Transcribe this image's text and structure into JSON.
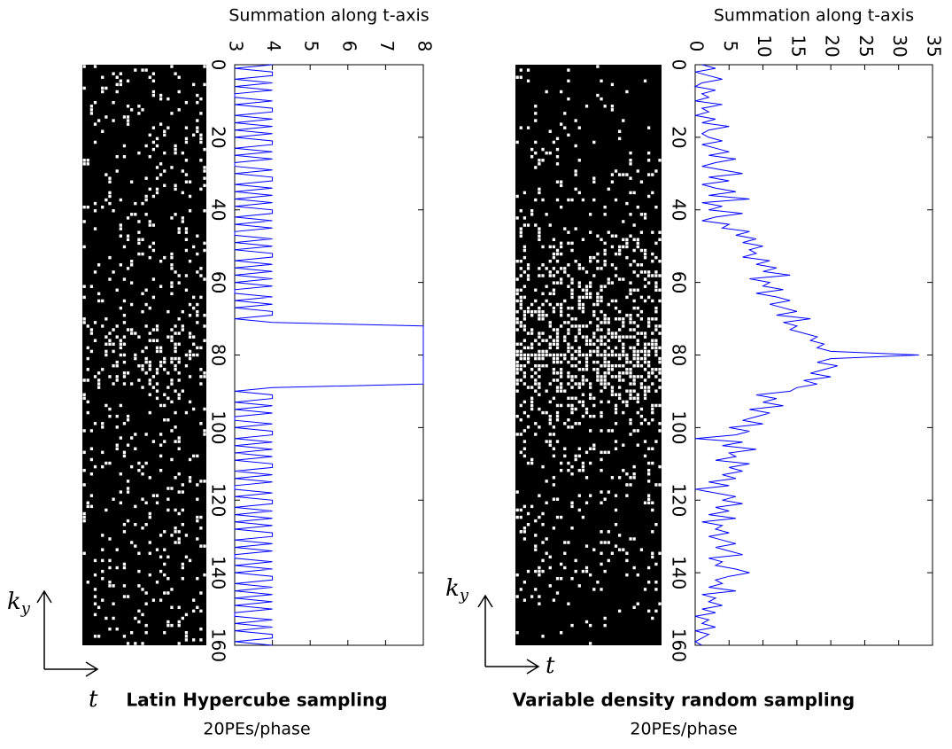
{
  "chart_data": [
    {
      "type": "line",
      "title": "Summation along  t-axis",
      "caption": "Latin Hypercube sampling",
      "subcaption": "20PEs/phase",
      "axis_labels": {
        "vertical": {
          "main": "k",
          "sub": "y"
        },
        "horizontal": "t"
      },
      "x": [
        0,
        1,
        2,
        3,
        4,
        5,
        6,
        7,
        8,
        9,
        10,
        11,
        12,
        13,
        14,
        15,
        16,
        17,
        18,
        19,
        20,
        21,
        22,
        23,
        24,
        25,
        26,
        27,
        28,
        29,
        30,
        31,
        32,
        33,
        34,
        35,
        36,
        37,
        38,
        39,
        40,
        41,
        42,
        43,
        44,
        45,
        46,
        47,
        48,
        49,
        50,
        51,
        52,
        53,
        54,
        55,
        56,
        57,
        58,
        59,
        60,
        61,
        62,
        63,
        64,
        65,
        66,
        67,
        68,
        69,
        70,
        71,
        72,
        73,
        74,
        75,
        76,
        77,
        78,
        79,
        80,
        81,
        82,
        83,
        84,
        85,
        86,
        87,
        88,
        89,
        90,
        91,
        92,
        93,
        94,
        95,
        96,
        97,
        98,
        99,
        100,
        101,
        102,
        103,
        104,
        105,
        106,
        107,
        108,
        109,
        110,
        111,
        112,
        113,
        114,
        115,
        116,
        117,
        118,
        119,
        120,
        121,
        122,
        123,
        124,
        125,
        126,
        127,
        128,
        129,
        130,
        131,
        132,
        133,
        134,
        135,
        136,
        137,
        138,
        139,
        140,
        141,
        142,
        143,
        144,
        145,
        146,
        147,
        148,
        149,
        150,
        151,
        152,
        153,
        154,
        155,
        156,
        157,
        158,
        159,
        160
      ],
      "series": [
        {
          "color": "#0000ff",
          "values": [
            4,
            3,
            4,
            4,
            3,
            4,
            3,
            4,
            3,
            3,
            4,
            3,
            4,
            4,
            3,
            4,
            3,
            4,
            3,
            4,
            3,
            4,
            4,
            3,
            4,
            3,
            4,
            3,
            3,
            4,
            3,
            4,
            4,
            3,
            4,
            3,
            4,
            3,
            4,
            3,
            4,
            4,
            3,
            4,
            3,
            4,
            3,
            3,
            4,
            3,
            4,
            3,
            4,
            4,
            3,
            4,
            3,
            4,
            3,
            4,
            3,
            4,
            3,
            3,
            4,
            3,
            4,
            3,
            4,
            4,
            3,
            4,
            8,
            8,
            8,
            8,
            8,
            8,
            8,
            8,
            8,
            8,
            8,
            8,
            8,
            8,
            8,
            8,
            8,
            4,
            3,
            4,
            4,
            3,
            4,
            3,
            4,
            3,
            3,
            4,
            3,
            4,
            4,
            3,
            4,
            3,
            4,
            3,
            4,
            3,
            4,
            4,
            3,
            4,
            3,
            4,
            3,
            3,
            4,
            3,
            4,
            4,
            3,
            4,
            3,
            4,
            3,
            4,
            3,
            4,
            4,
            3,
            4,
            3,
            4,
            3,
            3,
            4,
            3,
            4,
            3,
            4,
            4,
            3,
            4,
            3,
            4,
            3,
            4,
            3,
            4,
            3,
            3,
            4,
            3,
            4,
            3,
            4,
            4,
            3,
            4
          ]
        }
      ],
      "xlim": [
        0,
        160
      ],
      "xticks": [
        0,
        20,
        40,
        60,
        80,
        100,
        120,
        140,
        160
      ],
      "ylim": [
        3,
        8
      ],
      "yticks": [
        3,
        4,
        5,
        6,
        7,
        8
      ]
    },
    {
      "type": "line",
      "title": "Summation along  t-axis",
      "caption": "Variable density random sampling",
      "subcaption": "20PEs/phase",
      "axis_labels": {
        "vertical": {
          "main": "k",
          "sub": "y"
        },
        "horizontal": "t"
      },
      "x": [
        0,
        1,
        2,
        3,
        4,
        5,
        6,
        7,
        8,
        9,
        10,
        11,
        12,
        13,
        14,
        15,
        16,
        17,
        18,
        19,
        20,
        21,
        22,
        23,
        24,
        25,
        26,
        27,
        28,
        29,
        30,
        31,
        32,
        33,
        34,
        35,
        36,
        37,
        38,
        39,
        40,
        41,
        42,
        43,
        44,
        45,
        46,
        47,
        48,
        49,
        50,
        51,
        52,
        53,
        54,
        55,
        56,
        57,
        58,
        59,
        60,
        61,
        62,
        63,
        64,
        65,
        66,
        67,
        68,
        69,
        70,
        71,
        72,
        73,
        74,
        75,
        76,
        77,
        78,
        79,
        80,
        81,
        82,
        83,
        84,
        85,
        86,
        87,
        88,
        89,
        90,
        91,
        92,
        93,
        94,
        95,
        96,
        97,
        98,
        99,
        100,
        101,
        102,
        103,
        104,
        105,
        106,
        107,
        108,
        109,
        110,
        111,
        112,
        113,
        114,
        115,
        116,
        117,
        118,
        119,
        120,
        121,
        122,
        123,
        124,
        125,
        126,
        127,
        128,
        129,
        130,
        131,
        132,
        133,
        134,
        135,
        136,
        137,
        138,
        139,
        140,
        141,
        142,
        143,
        144,
        145,
        146,
        147,
        148,
        149,
        150,
        151,
        152,
        153,
        154,
        155,
        156,
        157,
        158,
        159,
        160
      ],
      "series": [
        {
          "color": "#0000ff",
          "values": [
            1,
            3,
            0,
            2,
            4,
            1,
            0,
            3,
            1,
            2,
            0,
            4,
            1,
            2,
            0,
            3,
            1,
            5,
            2,
            1,
            2,
            4,
            1,
            3,
            5,
            2,
            6,
            3,
            1,
            4,
            7,
            2,
            5,
            1,
            3,
            6,
            2,
            8,
            1,
            4,
            2,
            7,
            3,
            1,
            5,
            4,
            8,
            6,
            9,
            7,
            10,
            8,
            9,
            7,
            11,
            9,
            12,
            10,
            14,
            8,
            11,
            10,
            13,
            9,
            12,
            14,
            11,
            13,
            15,
            12,
            17,
            13,
            15,
            14,
            16,
            18,
            17,
            19,
            18,
            20,
            33,
            20,
            18,
            21,
            19,
            17,
            20,
            16,
            18,
            15,
            14,
            9,
            12,
            10,
            13,
            8,
            11,
            9,
            7,
            10,
            5,
            8,
            6,
            0,
            7,
            4,
            9,
            5,
            6,
            3,
            8,
            5,
            7,
            4,
            6,
            2,
            5,
            0,
            3,
            6,
            4,
            7,
            3,
            5,
            2,
            6,
            1,
            4,
            3,
            5,
            2,
            4,
            6,
            3,
            5,
            7,
            2,
            4,
            3,
            6,
            8,
            5,
            3,
            4,
            2,
            6,
            1,
            3,
            2,
            4,
            1,
            3,
            0,
            2,
            1,
            3,
            0,
            2,
            1,
            0,
            1
          ]
        }
      ],
      "xlim": [
        0,
        160
      ],
      "xticks": [
        0,
        20,
        40,
        60,
        80,
        100,
        120,
        140,
        160
      ],
      "ylim": [
        0,
        35
      ],
      "yticks": [
        0,
        5,
        10,
        15,
        20,
        25,
        30,
        35
      ]
    }
  ]
}
